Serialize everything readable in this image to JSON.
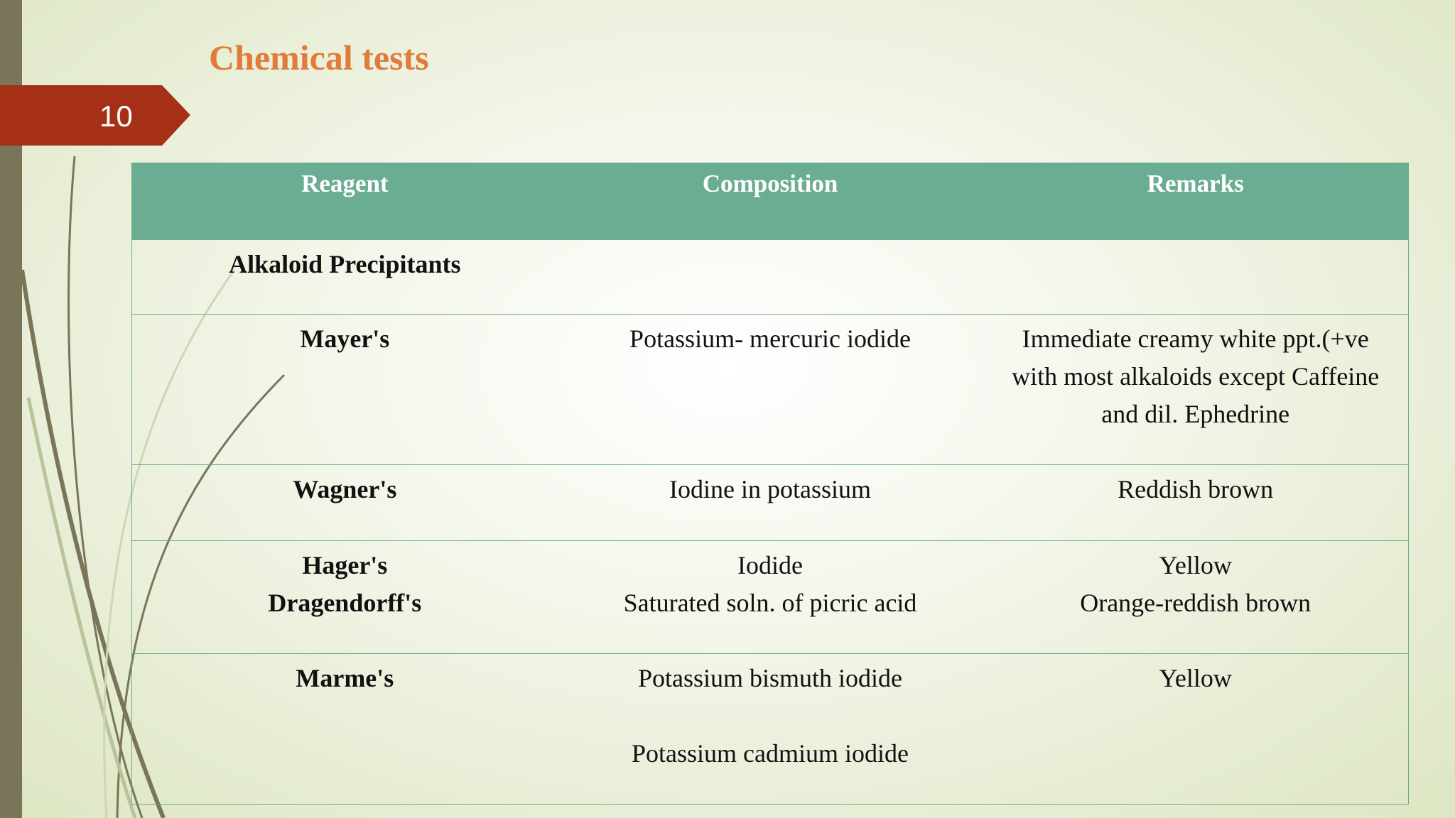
{
  "slide_number": "10",
  "title": "Chemical tests",
  "table": {
    "headers": [
      "Reagent",
      "Composition",
      "Remarks"
    ],
    "rows": [
      {
        "reagent": [
          "Alkaloid Precipitants"
        ]
      },
      {
        "reagent": [
          "Mayer's"
        ],
        "composition": [
          "Potassium- mercuric iodide"
        ],
        "remarks": [
          "Immediate creamy white ppt.(+ve",
          "with most alkaloids except Caffeine",
          "and dil. Ephedrine"
        ]
      },
      {
        "reagent": [
          "Wagner's"
        ],
        "composition": [
          "Iodine in potassium"
        ],
        "remarks": [
          "Reddish brown"
        ]
      },
      {
        "reagent": [
          "Hager's",
          "Dragendorff's"
        ],
        "composition": [
          "Iodide",
          "Saturated soln. of picric acid"
        ],
        "remarks": [
          "Yellow",
          "Orange-reddish brown"
        ]
      },
      {
        "reagent": [
          "Marme's"
        ],
        "composition": [
          "Potassium bismuth iodide",
          "Potassium cadmium iodide"
        ],
        "remarks": [
          "Yellow"
        ]
      }
    ]
  }
}
